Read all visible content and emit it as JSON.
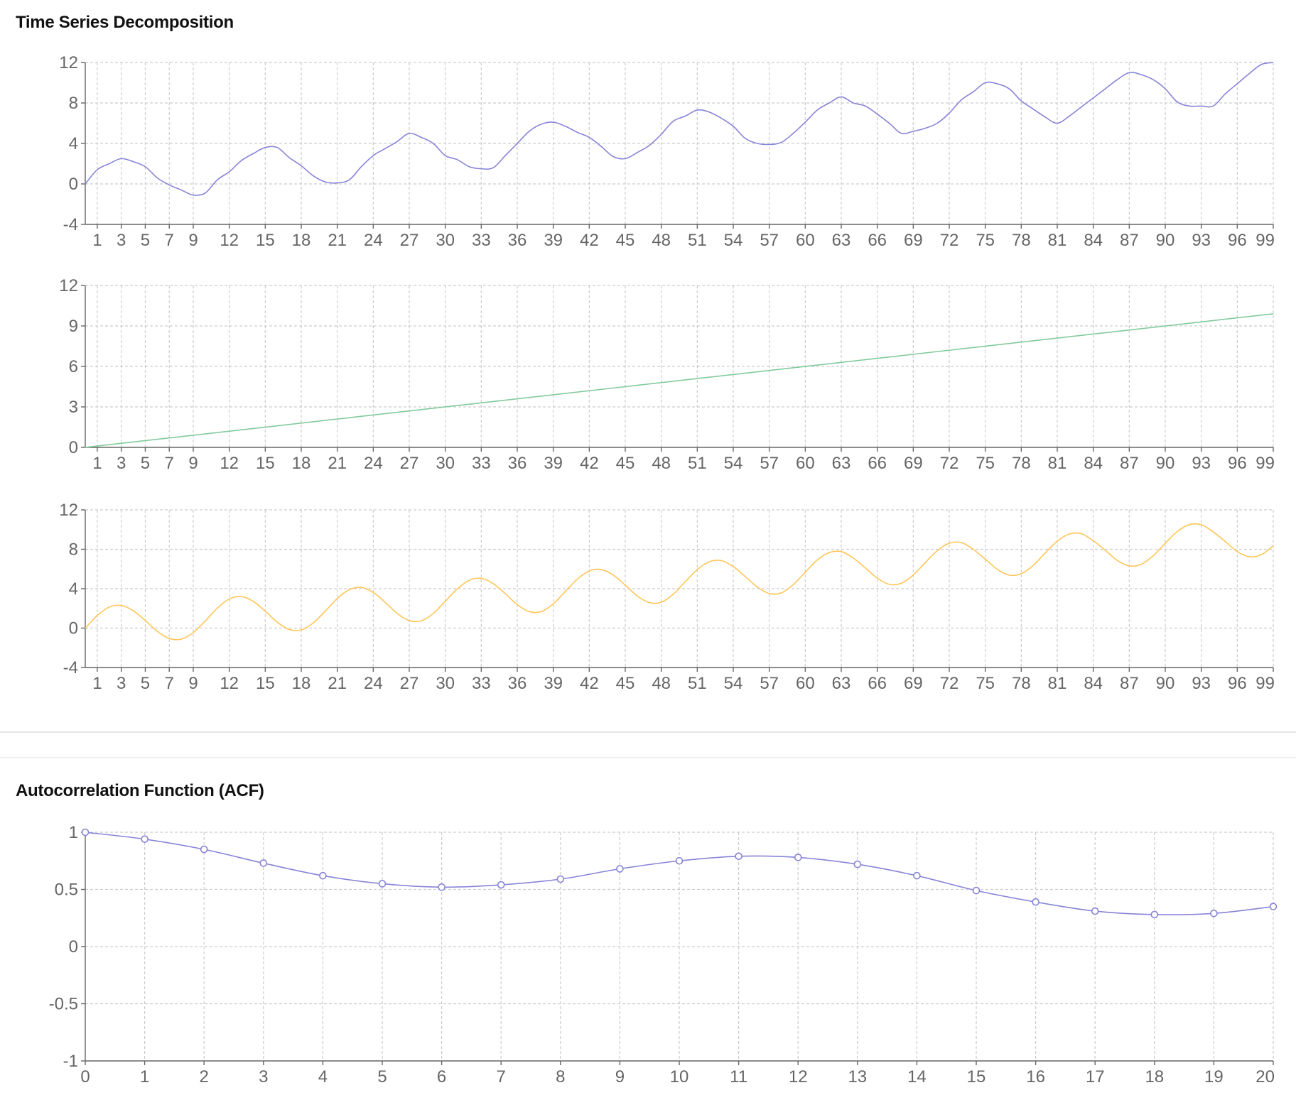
{
  "panels": {
    "decomposition_title": "Time Series Decomposition",
    "acf_title": "Autocorrelation Function (ACF)"
  },
  "colors": {
    "observed": "#8884d8",
    "trend": "#82ca9d",
    "seasonal": "#ffc658",
    "acf": "#8884d8",
    "grid": "#cccccc",
    "axis": "#666666"
  },
  "chart_data": [
    {
      "type": "line",
      "title": "Time Series Decomposition",
      "xlabel": "",
      "ylabel": "",
      "x_range": [
        0,
        99
      ],
      "x_ticks": [
        1,
        3,
        5,
        7,
        9,
        12,
        15,
        18,
        21,
        24,
        27,
        30,
        33,
        36,
        39,
        42,
        45,
        48,
        51,
        54,
        57,
        60,
        63,
        66,
        69,
        72,
        75,
        78,
        81,
        84,
        87,
        90,
        93,
        96,
        99
      ],
      "ylim": [
        -4,
        12
      ],
      "y_ticks": [
        -4,
        0,
        4,
        8,
        12
      ],
      "grid": true,
      "series": [
        {
          "key": "observed",
          "x": [
            0,
            1,
            2,
            3,
            4,
            5,
            6,
            7,
            8,
            9,
            10,
            11,
            12,
            13,
            14,
            15,
            16,
            17,
            18,
            19,
            20,
            21,
            22,
            23,
            24,
            25,
            26,
            27,
            28,
            29,
            30,
            31,
            32,
            33,
            34,
            35,
            36,
            37,
            38,
            39,
            40,
            41,
            42,
            43,
            44,
            45,
            46,
            47,
            48,
            49,
            50,
            51,
            52,
            53,
            54,
            55,
            56,
            57,
            58,
            59,
            60,
            61,
            62,
            63,
            64,
            65,
            66,
            67,
            68,
            69,
            70,
            71,
            72,
            73,
            74,
            75,
            76,
            77,
            78,
            79,
            80,
            81,
            82,
            83,
            84,
            85,
            86,
            87,
            88,
            89,
            90,
            91,
            92,
            93,
            94,
            95,
            96,
            97,
            98,
            99
          ],
          "values": [
            0.0,
            1.4,
            2.0,
            2.5,
            2.2,
            1.7,
            0.6,
            -0.1,
            -0.6,
            -1.1,
            -0.9,
            0.4,
            1.2,
            2.3,
            3.0,
            3.6,
            3.6,
            2.6,
            1.8,
            0.8,
            0.2,
            0.1,
            0.4,
            1.7,
            2.8,
            3.5,
            4.2,
            5.0,
            4.6,
            4.0,
            2.8,
            2.4,
            1.7,
            1.5,
            1.6,
            2.8,
            4.0,
            5.2,
            5.9,
            6.1,
            5.7,
            5.1,
            4.6,
            3.7,
            2.7,
            2.5,
            3.1,
            3.8,
            4.9,
            6.2,
            6.7,
            7.3,
            7.1,
            6.5,
            5.7,
            4.5,
            4.0,
            3.9,
            4.1,
            5.0,
            6.1,
            7.3,
            8.0,
            8.6,
            8.0,
            7.7,
            6.9,
            6.0,
            5.0,
            5.2,
            5.5,
            6.0,
            7.0,
            8.3,
            9.1,
            10.0,
            9.9,
            9.4,
            8.2,
            7.4,
            6.6,
            6.0,
            6.7,
            7.6,
            8.5,
            9.4,
            10.3,
            11.0,
            10.8,
            10.3,
            9.4,
            8.1,
            7.7,
            7.7,
            7.7,
            8.9,
            9.9,
            10.9,
            11.8,
            12.0
          ]
        }
      ]
    },
    {
      "type": "line",
      "xlabel": "",
      "ylabel": "",
      "x_range": [
        0,
        99
      ],
      "x_ticks": [
        1,
        3,
        5,
        7,
        9,
        12,
        15,
        18,
        21,
        24,
        27,
        30,
        33,
        36,
        39,
        42,
        45,
        48,
        51,
        54,
        57,
        60,
        63,
        66,
        69,
        72,
        75,
        78,
        81,
        84,
        87,
        90,
        93,
        96,
        99
      ],
      "ylim": [
        0,
        12
      ],
      "y_ticks": [
        0,
        3,
        6,
        9,
        12
      ],
      "grid": true,
      "series": [
        {
          "key": "trend",
          "x": [
            0,
            99
          ],
          "values": [
            0.0,
            9.9
          ]
        }
      ]
    },
    {
      "type": "line",
      "xlabel": "",
      "ylabel": "",
      "x_range": [
        0,
        99
      ],
      "x_ticks": [
        1,
        3,
        5,
        7,
        9,
        12,
        15,
        18,
        21,
        24,
        27,
        30,
        33,
        36,
        39,
        42,
        45,
        48,
        51,
        54,
        57,
        60,
        63,
        66,
        69,
        72,
        75,
        78,
        81,
        84,
        87,
        90,
        93,
        96,
        99
      ],
      "ylim": [
        -4,
        12
      ],
      "y_ticks": [
        -4,
        0,
        4,
        8,
        12
      ],
      "grid": true,
      "series": [
        {
          "key": "seasonal",
          "formula_note": "",
          "x": [
            0,
            1,
            2,
            3,
            4,
            5,
            6,
            7,
            8,
            9,
            10,
            11,
            12,
            13,
            14,
            15,
            16,
            17,
            18,
            19,
            20,
            21,
            22,
            23,
            24,
            25,
            26,
            27,
            28,
            29,
            30,
            31,
            32,
            33,
            34,
            35,
            36,
            37,
            38,
            39,
            40,
            41,
            42,
            43,
            44,
            45,
            46,
            47,
            48,
            49,
            50,
            51,
            52,
            53,
            54,
            55,
            56,
            57,
            58,
            59,
            60,
            61,
            62,
            63,
            64,
            65,
            66,
            67,
            68,
            69,
            70,
            71,
            72,
            73,
            74,
            75,
            76,
            77,
            78,
            79,
            80,
            81,
            82,
            83,
            84,
            85,
            86,
            87,
            88,
            89,
            90,
            91,
            92,
            93,
            94,
            95,
            96,
            97,
            98,
            99
          ],
          "values": [
            0.0,
            1.27,
            2.13,
            2.3,
            1.76,
            0.77,
            -0.32,
            -1.05,
            -1.12,
            -0.46,
            0.73,
            2.02,
            2.95,
            3.2,
            2.71,
            1.72,
            0.6,
            -0.14,
            -0.18,
            0.52,
            1.72,
            3.0,
            3.9,
            4.13,
            3.62,
            2.61,
            1.49,
            0.76,
            0.74,
            1.49,
            2.72,
            3.98,
            4.85,
            5.05,
            4.51,
            3.49,
            2.38,
            1.67,
            1.68,
            2.46,
            3.72,
            4.96,
            5.79,
            5.95,
            5.38,
            4.37,
            3.27,
            2.59,
            2.63,
            3.44,
            4.71,
            5.94,
            6.73,
            6.85,
            6.24,
            5.23,
            4.17,
            3.51,
            3.58,
            4.41,
            5.68,
            6.91,
            7.67,
            7.76,
            7.11,
            6.11,
            5.07,
            4.44,
            4.55,
            5.39,
            6.65,
            7.86,
            8.61,
            8.68,
            7.99,
            7.0,
            5.97,
            5.38,
            5.52,
            6.37,
            7.63,
            8.83,
            9.55,
            9.58,
            8.87,
            7.89,
            6.87,
            6.31,
            6.48,
            7.35,
            8.62,
            9.8,
            10.5,
            10.49,
            9.76,
            8.79,
            7.77,
            7.25,
            7.45,
            8.35
          ]
        }
      ]
    },
    {
      "type": "line",
      "title": "Autocorrelation Function (ACF)",
      "xlabel": "",
      "ylabel": "",
      "x_range": [
        0,
        20
      ],
      "x_ticks": [
        0,
        1,
        2,
        3,
        4,
        5,
        6,
        7,
        8,
        9,
        10,
        11,
        12,
        13,
        14,
        15,
        16,
        17,
        18,
        19,
        20
      ],
      "ylim": [
        -1,
        1
      ],
      "y_ticks": [
        "-1",
        "-0.5",
        "0",
        "0.5",
        "1"
      ],
      "grid": true,
      "markers": true,
      "series": [
        {
          "key": "acf",
          "x": [
            0,
            1,
            2,
            3,
            4,
            5,
            6,
            7,
            8,
            9,
            10,
            11,
            12,
            13,
            14,
            15,
            16,
            17,
            18,
            19,
            20
          ],
          "values": [
            1.0,
            0.94,
            0.85,
            0.73,
            0.62,
            0.55,
            0.52,
            0.54,
            0.59,
            0.68,
            0.75,
            0.79,
            0.78,
            0.72,
            0.62,
            0.49,
            0.39,
            0.31,
            0.28,
            0.29,
            0.35
          ]
        }
      ]
    }
  ]
}
